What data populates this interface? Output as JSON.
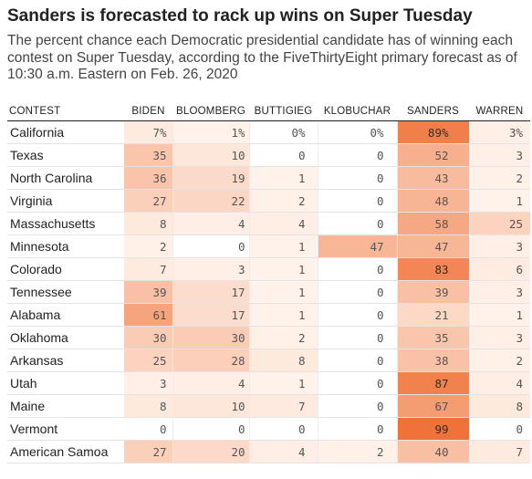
{
  "title": "Sanders is forecasted to rack up wins on Super Tuesday",
  "subtitle": "The percent chance each Democratic presidential candidate has of winning each contest on Super Tuesday, according to the FiveThirtyEight primary forecast as of 10:30 a.m. Eastern on Feb. 26, 2020",
  "colors": {
    "heat_high": "#ef7136",
    "heat_low": "#fff3ec",
    "rule": "#222222"
  },
  "chart_data": {
    "type": "heatmap",
    "value_unit": "%",
    "row_header": "CONTEST",
    "columns": [
      "BIDEN",
      "BLOOMBERG",
      "BUTTIGIEG",
      "KLOBUCHAR",
      "SANDERS",
      "WARREN"
    ],
    "rows": [
      {
        "contest": "California",
        "values": [
          7,
          1,
          0,
          0,
          89,
          3
        ],
        "labels": [
          "7%",
          "1%",
          "0%",
          "0%",
          "89%",
          "3%"
        ]
      },
      {
        "contest": "Texas",
        "values": [
          35,
          10,
          0,
          0,
          52,
          3
        ],
        "labels": [
          "35",
          "10",
          "0",
          "0",
          "52",
          "3"
        ]
      },
      {
        "contest": "North Carolina",
        "values": [
          36,
          19,
          1,
          0,
          43,
          2
        ],
        "labels": [
          "36",
          "19",
          "1",
          "0",
          "43",
          "2"
        ]
      },
      {
        "contest": "Virginia",
        "values": [
          27,
          22,
          2,
          0,
          48,
          1
        ],
        "labels": [
          "27",
          "22",
          "2",
          "0",
          "48",
          "1"
        ]
      },
      {
        "contest": "Massachusetts",
        "values": [
          8,
          4,
          4,
          0,
          58,
          25
        ],
        "labels": [
          "8",
          "4",
          "4",
          "0",
          "58",
          "25"
        ]
      },
      {
        "contest": "Minnesota",
        "values": [
          2,
          0,
          1,
          47,
          47,
          3
        ],
        "labels": [
          "2",
          "0",
          "1",
          "47",
          "47",
          "3"
        ]
      },
      {
        "contest": "Colorado",
        "values": [
          7,
          3,
          1,
          0,
          83,
          6
        ],
        "labels": [
          "7",
          "3",
          "1",
          "0",
          "83",
          "6"
        ]
      },
      {
        "contest": "Tennessee",
        "values": [
          39,
          17,
          1,
          0,
          39,
          3
        ],
        "labels": [
          "39",
          "17",
          "1",
          "0",
          "39",
          "3"
        ]
      },
      {
        "contest": "Alabama",
        "values": [
          61,
          17,
          1,
          0,
          21,
          1
        ],
        "labels": [
          "61",
          "17",
          "1",
          "0",
          "21",
          "1"
        ]
      },
      {
        "contest": "Oklahoma",
        "values": [
          30,
          30,
          2,
          0,
          35,
          3
        ],
        "labels": [
          "30",
          "30",
          "2",
          "0",
          "35",
          "3"
        ]
      },
      {
        "contest": "Arkansas",
        "values": [
          25,
          28,
          8,
          0,
          38,
          2
        ],
        "labels": [
          "25",
          "28",
          "8",
          "0",
          "38",
          "2"
        ]
      },
      {
        "contest": "Utah",
        "values": [
          3,
          4,
          1,
          0,
          87,
          4
        ],
        "labels": [
          "3",
          "4",
          "1",
          "0",
          "87",
          "4"
        ]
      },
      {
        "contest": "Maine",
        "values": [
          8,
          10,
          7,
          0,
          67,
          8
        ],
        "labels": [
          "8",
          "10",
          "7",
          "0",
          "67",
          "8"
        ]
      },
      {
        "contest": "Vermont",
        "values": [
          0,
          0,
          0,
          0,
          99,
          0
        ],
        "labels": [
          "0",
          "0",
          "0",
          "0",
          "99",
          "0"
        ]
      },
      {
        "contest": "American Samoa",
        "values": [
          27,
          20,
          4,
          2,
          40,
          7
        ],
        "labels": [
          "27",
          "20",
          "4",
          "2",
          "40",
          "7"
        ]
      }
    ]
  }
}
